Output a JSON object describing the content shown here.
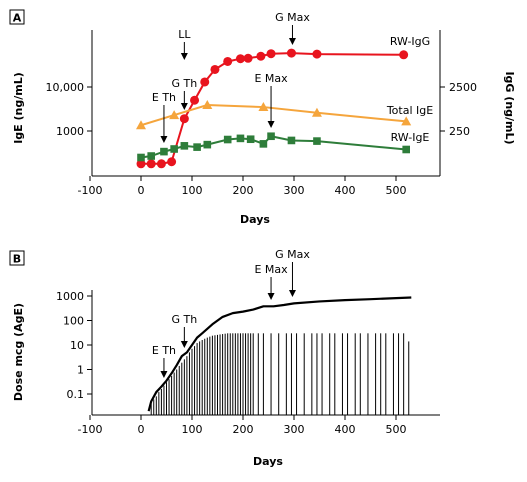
{
  "colors": {
    "rw_igg": "#e8141e",
    "total_ige": "#f5a53c",
    "rw_ige": "#2e7d3a",
    "axis": "#000000"
  },
  "chart_data": [
    {
      "panel": "A",
      "type": "line",
      "xlabel": "Days",
      "ylabel": "IgE (ng/mL)",
      "y2label": "IgG (ng/mL)",
      "xlim": [
        -100,
        550
      ],
      "xticks": [
        -100,
        0,
        100,
        200,
        300,
        400,
        500
      ],
      "ylim": [
        100,
        100000
      ],
      "y_scale": "log",
      "yticks": [
        {
          "value": 1000,
          "label": "1000"
        },
        {
          "value": 10000,
          "label": "10,000"
        }
      ],
      "y2ticks": [
        {
          "value": 1000,
          "label": "250"
        },
        {
          "value": 10000,
          "label": "2500"
        }
      ],
      "grid": false,
      "annotations": [
        {
          "label": "E Th",
          "x": 45,
          "y": 3000
        },
        {
          "label": "LL",
          "x": 85,
          "y": 40000
        },
        {
          "label": "G Th",
          "x": 85,
          "y": 3500
        },
        {
          "label": "E Max",
          "x": 255,
          "y": 1500
        },
        {
          "label": "G Max",
          "x": 297,
          "y": 70000
        }
      ],
      "series": [
        {
          "name": "RW-IgG",
          "color": "#e8141e",
          "marker": "circle",
          "x": [
            0,
            20,
            40,
            60,
            85,
            105,
            125,
            145,
            170,
            195,
            210,
            235,
            255,
            295,
            345,
            515
          ],
          "y": [
            180,
            180,
            180,
            200,
            1900,
            5000,
            13000,
            25000,
            38000,
            44000,
            45000,
            50000,
            57000,
            59000,
            56000,
            54000
          ]
        },
        {
          "name": "Total IgE",
          "color": "#f5a53c",
          "marker": "triangle",
          "x": [
            0,
            65,
            130,
            240,
            345,
            520
          ],
          "y": [
            1350,
            2300,
            3900,
            3500,
            2600,
            1650
          ]
        },
        {
          "name": "RW-IgE",
          "color": "#2e7d3a",
          "marker": "square",
          "x": [
            0,
            20,
            45,
            65,
            85,
            110,
            130,
            170,
            195,
            215,
            240,
            255,
            295,
            345,
            520
          ],
          "y": [
            250,
            270,
            340,
            390,
            460,
            430,
            490,
            640,
            680,
            650,
            510,
            760,
            610,
            590,
            380
          ]
        }
      ]
    },
    {
      "panel": "B",
      "type": "line",
      "xlabel": "Days",
      "ylabel": "Dose mcg (AgE)",
      "xlim": [
        -100,
        550
      ],
      "xticks": [
        -100,
        0,
        100,
        200,
        300,
        400,
        500
      ],
      "ylim": [
        0.02,
        1000
      ],
      "y_scale": "log",
      "yticks": [
        {
          "value": 0.1,
          "label": "0.1"
        },
        {
          "value": 1,
          "label": "1"
        },
        {
          "value": 10,
          "label": "10"
        },
        {
          "value": 100,
          "label": "100"
        },
        {
          "value": 1000,
          "label": "1000"
        }
      ],
      "grid": false,
      "annotations": [
        {
          "label": "E Th",
          "x": 45,
          "y": 1.5
        },
        {
          "label": "G Th",
          "x": 85,
          "y": 7
        },
        {
          "label": "E Max",
          "x": 255,
          "y": 550
        },
        {
          "label": "G Max",
          "x": 297,
          "y": 650
        }
      ],
      "series": [
        {
          "type": "line",
          "x": [
            15,
            20,
            30,
            40,
            50,
            60,
            70,
            80,
            90,
            100,
            110,
            120,
            140,
            160,
            180,
            200,
            220,
            240,
            260,
            280,
            300,
            350,
            400,
            450,
            500,
            530
          ],
          "y": [
            0.02,
            0.05,
            0.12,
            0.2,
            0.35,
            0.7,
            1.5,
            3.5,
            5,
            10,
            20,
            30,
            70,
            140,
            200,
            230,
            280,
            380,
            380,
            430,
            500,
            600,
            680,
            740,
            820,
            870
          ]
        },
        {
          "type": "spikes",
          "x": [
            20,
            25,
            30,
            35,
            40,
            45,
            50,
            55,
            60,
            65,
            70,
            75,
            80,
            85,
            90,
            95,
            100,
            105,
            110,
            115,
            120,
            125,
            130,
            135,
            140,
            145,
            150,
            155,
            160,
            165,
            170,
            175,
            180,
            185,
            190,
            195,
            200,
            205,
            210,
            215,
            220,
            230,
            240,
            255,
            270,
            285,
            295,
            305,
            320,
            335,
            345,
            355,
            370,
            380,
            395,
            405,
            420,
            430,
            445,
            460,
            470,
            480,
            495,
            505,
            515,
            525
          ],
          "y": [
            0.04,
            0.06,
            0.08,
            0.12,
            0.16,
            0.22,
            0.3,
            0.4,
            0.55,
            0.75,
            1,
            1.4,
            1.9,
            2.6,
            3.5,
            5,
            7,
            9,
            12,
            14,
            16,
            18,
            20,
            22,
            24,
            25,
            26,
            27,
            28,
            29,
            30,
            30,
            30,
            30,
            30,
            30,
            30,
            30,
            30,
            30,
            30,
            30,
            30,
            30,
            30,
            30,
            30,
            30,
            30,
            30,
            30,
            30,
            30,
            30,
            30,
            30,
            30,
            30,
            30,
            30,
            30,
            30,
            30,
            30,
            30,
            14
          ]
        }
      ]
    }
  ]
}
